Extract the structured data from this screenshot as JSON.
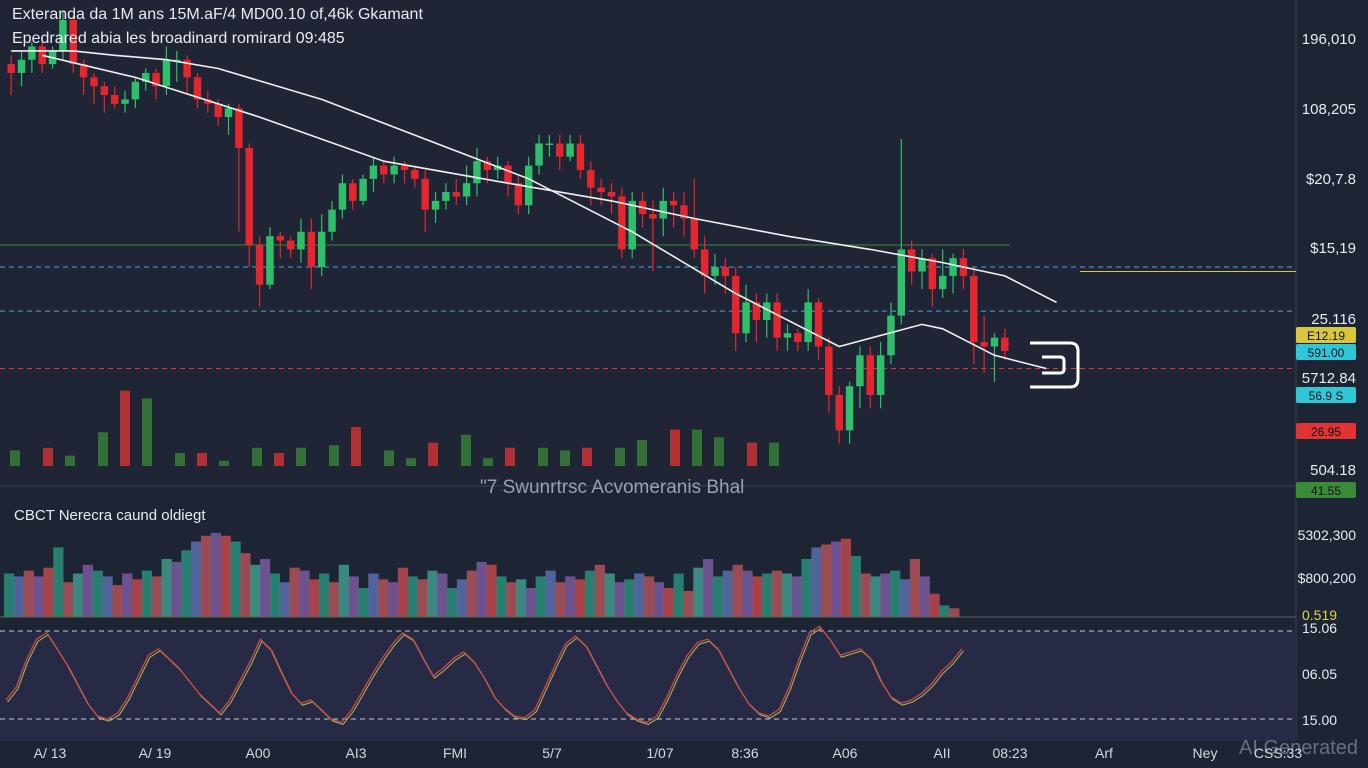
{
  "header": {
    "title": "Exteranda da 1M ans 15M.aF/4 MD00.10 of,46k Gkamant",
    "subtitle": "Epedrared abia les broadinard romirard 09:485"
  },
  "volume_panel": {
    "title": "CBCT Nerecra caund oldiegt"
  },
  "watermark": "AI Generated",
  "colors": {
    "background": "#1d2433",
    "panel_bg": "#262a44",
    "bullish": "#2fbf6a",
    "bearish": "#e5262f",
    "line": "#f0f0f0",
    "level_blue": "#4da3e8",
    "level_red": "#e23434",
    "level_green": "#3a8a3a",
    "level_yellow": "#d9c63a"
  },
  "chart_data": [
    {
      "type": "candlestick",
      "title": "Exteranda da 1M ans 15M.aF/4 MD00.10 of,46k Gkamant",
      "subtitle": "Epedrared abia les broadinard romirard 09:485",
      "y_tick_labels": [
        "196,010",
        "108,205",
        "$20,7.8",
        "$15,19",
        "25.116",
        "5712.84",
        "504.18"
      ],
      "x_tick_labels": [
        "A/ 13",
        "A/ 19",
        "A00",
        "AI3",
        "FMI",
        "5/7",
        "1/07",
        "8:36",
        "A06",
        "AII",
        "08:23",
        "Arf",
        "Ney",
        "CSS:33"
      ],
      "price_tags": [
        {
          "label": "E12.19",
          "color": "#d9c63a"
        },
        {
          "label": "591.00",
          "color": "#2fc6d8"
        },
        {
          "label": "56.9 S",
          "color": "#2fc6d8"
        },
        {
          "label": "26.95",
          "color": "#e23434"
        },
        {
          "label": "41.55",
          "color": "#3a8a3a"
        }
      ],
      "annotation": "\"7 Swunrtrsc Acvomeranis Bhal",
      "candles_ohlc": [
        [
          196,
          194,
          198,
          189
        ],
        [
          194,
          197,
          199,
          191
        ],
        [
          197,
          200,
          201,
          194
        ],
        [
          200,
          196,
          201,
          194
        ],
        [
          196,
          199,
          200,
          195
        ],
        [
          199,
          206,
          208,
          197
        ],
        [
          206,
          196,
          207,
          194
        ],
        [
          196,
          193,
          197,
          189
        ],
        [
          193,
          191,
          194,
          187
        ],
        [
          191,
          189,
          192,
          185
        ],
        [
          189,
          187,
          191,
          186
        ],
        [
          187,
          188,
          190,
          185
        ],
        [
          188,
          192,
          193,
          186
        ],
        [
          192,
          194,
          195,
          190
        ],
        [
          194,
          191,
          195,
          188
        ],
        [
          191,
          197,
          200,
          189
        ],
        [
          197,
          197,
          199,
          192
        ],
        [
          197,
          193,
          198,
          189
        ],
        [
          193,
          188,
          194,
          186
        ],
        [
          188,
          187,
          190,
          185
        ],
        [
          187,
          184,
          188,
          182
        ],
        [
          184,
          186,
          187,
          180
        ],
        [
          186,
          177,
          187,
          158
        ],
        [
          177,
          155,
          178,
          150
        ],
        [
          155,
          146,
          157,
          141
        ],
        [
          146,
          157,
          159,
          145
        ],
        [
          157,
          156,
          158,
          152
        ],
        [
          156,
          154,
          157,
          152
        ],
        [
          154,
          158,
          161,
          151
        ],
        [
          158,
          150,
          161,
          145
        ],
        [
          150,
          158,
          162,
          148
        ],
        [
          158,
          163,
          165,
          156
        ],
        [
          163,
          169,
          171,
          161
        ],
        [
          169,
          165,
          170,
          163
        ],
        [
          165,
          170,
          171,
          164
        ],
        [
          170,
          173,
          175,
          167
        ],
        [
          173,
          171,
          174,
          169
        ],
        [
          171,
          173,
          175,
          169
        ],
        [
          173,
          172,
          174,
          169
        ],
        [
          172,
          170,
          173,
          168
        ],
        [
          170,
          163,
          172,
          158
        ],
        [
          163,
          165,
          167,
          160
        ],
        [
          165,
          167,
          169,
          163
        ],
        [
          167,
          166,
          170,
          164
        ],
        [
          166,
          169,
          173,
          164
        ],
        [
          169,
          174,
          177,
          166
        ],
        [
          174,
          172,
          175,
          169
        ],
        [
          172,
          173,
          175,
          170
        ],
        [
          173,
          169,
          174,
          166
        ],
        [
          169,
          164,
          171,
          162
        ],
        [
          164,
          173,
          175,
          162
        ],
        [
          173,
          178,
          180,
          171
        ],
        [
          178,
          178,
          180,
          175
        ],
        [
          178,
          175,
          180,
          172
        ],
        [
          175,
          178,
          180,
          174
        ],
        [
          178,
          172,
          180,
          170
        ],
        [
          172,
          168,
          174,
          164
        ],
        [
          168,
          167,
          170,
          164
        ],
        [
          167,
          166,
          169,
          162
        ],
        [
          166,
          154,
          168,
          152
        ],
        [
          154,
          165,
          167,
          152
        ],
        [
          165,
          162,
          167,
          159
        ],
        [
          162,
          161,
          165,
          149
        ],
        [
          161,
          165,
          168,
          157
        ],
        [
          165,
          164,
          167,
          159
        ],
        [
          164,
          161,
          167,
          157
        ],
        [
          161,
          154,
          170,
          152
        ],
        [
          154,
          148,
          157,
          144
        ],
        [
          148,
          150,
          153,
          146
        ],
        [
          150,
          148,
          152,
          144
        ],
        [
          148,
          135,
          150,
          131
        ],
        [
          135,
          142,
          146,
          133
        ],
        [
          142,
          138,
          144,
          133
        ],
        [
          138,
          142,
          144,
          134
        ],
        [
          142,
          134,
          144,
          131
        ],
        [
          134,
          135,
          137,
          131
        ],
        [
          135,
          133,
          136,
          131
        ],
        [
          133,
          142,
          145,
          131
        ],
        [
          142,
          132,
          143,
          129
        ],
        [
          132,
          121,
          134,
          117
        ],
        [
          121,
          113,
          123,
          110
        ],
        [
          113,
          123,
          124,
          110
        ],
        [
          123,
          130,
          132,
          118
        ],
        [
          130,
          121,
          132,
          118
        ],
        [
          121,
          130,
          133,
          118
        ],
        [
          130,
          139,
          142,
          128
        ],
        [
          139,
          154,
          179,
          137
        ],
        [
          154,
          149,
          156,
          146
        ],
        [
          149,
          152,
          154,
          145
        ],
        [
          152,
          145,
          153,
          141
        ],
        [
          145,
          148,
          154,
          143
        ],
        [
          148,
          152,
          153,
          144
        ],
        [
          152,
          148,
          154,
          145
        ],
        [
          148,
          133,
          150,
          128
        ],
        [
          133,
          132,
          139,
          126
        ],
        [
          132,
          134,
          135,
          124
        ],
        [
          134,
          131,
          136,
          129
        ]
      ],
      "sma_short": [
        [
          0,
          199
        ],
        [
          6,
          199
        ],
        [
          10,
          198
        ],
        [
          15,
          197
        ],
        [
          20,
          195
        ],
        [
          30,
          188
        ],
        [
          40,
          179
        ],
        [
          50,
          170
        ],
        [
          60,
          158
        ],
        [
          70,
          144
        ],
        [
          80,
          132
        ],
        [
          88,
          137
        ],
        [
          90,
          136
        ],
        [
          95,
          130
        ],
        [
          100,
          127
        ]
      ],
      "sma_long": [
        [
          3,
          198
        ],
        [
          12,
          193
        ],
        [
          24,
          184
        ],
        [
          36,
          174
        ],
        [
          48,
          169
        ],
        [
          58,
          165
        ],
        [
          66,
          161
        ],
        [
          75,
          157
        ],
        [
          83,
          154
        ],
        [
          90,
          151
        ],
        [
          96,
          148
        ],
        [
          101,
          142
        ]
      ],
      "volume_ma_values": [
        [
          0,
          6
        ],
        [
          1,
          7
        ],
        [
          2,
          4
        ],
        [
          3,
          13
        ],
        [
          4,
          29
        ],
        [
          5,
          26
        ],
        [
          6,
          5
        ],
        [
          7,
          5
        ],
        [
          8,
          2
        ],
        [
          9,
          7
        ],
        [
          10,
          5
        ],
        [
          11,
          7
        ],
        [
          12,
          8
        ],
        [
          13,
          15
        ],
        [
          14,
          6
        ],
        [
          15,
          3
        ],
        [
          16,
          9
        ],
        [
          17,
          12
        ],
        [
          18,
          3
        ],
        [
          19,
          7
        ],
        [
          20,
          7
        ],
        [
          21,
          6
        ],
        [
          22,
          7
        ],
        [
          23,
          7
        ],
        [
          24,
          10
        ],
        [
          25,
          14
        ],
        [
          26,
          14
        ],
        [
          27,
          11
        ],
        [
          28,
          9
        ],
        [
          29,
          9
        ]
      ],
      "horizontal_levels": [
        {
          "value": 155,
          "color": "#3a8a3a",
          "style": "solid"
        },
        {
          "value": 150,
          "color": "#4da3e8",
          "style": "dashed"
        },
        {
          "value": 140,
          "color": "#4da3e8",
          "style": "dashed"
        },
        {
          "value": 127,
          "color": "#e23434",
          "style": "dashed"
        },
        {
          "value": 149,
          "color": "#d9c63a",
          "style": "solid"
        }
      ],
      "ylim": [
        104,
        206
      ]
    },
    {
      "type": "bar",
      "title": "CBCT Nerecra caund oldiegt",
      "y_tick_labels": [
        "5302,300",
        "$800,200",
        "0.519"
      ],
      "volumes": [
        15,
        14,
        16,
        14,
        17,
        24,
        12,
        15,
        18,
        16,
        14,
        11,
        15,
        13,
        16,
        14,
        20,
        19,
        23,
        26,
        28,
        29,
        28,
        26,
        22,
        18,
        20,
        15,
        12,
        17,
        16,
        13,
        15,
        12,
        18,
        14,
        10,
        15,
        13,
        12,
        17,
        14,
        13,
        16,
        15,
        10,
        13,
        16,
        19,
        18,
        14,
        12,
        13,
        10,
        14,
        16,
        12,
        14,
        13,
        16,
        18,
        15,
        12,
        13,
        15,
        14,
        12,
        10,
        15,
        9,
        17,
        20,
        14,
        16,
        18,
        16,
        14,
        15,
        16,
        15,
        14,
        20,
        24,
        25,
        26,
        27,
        21,
        15,
        14,
        15,
        16,
        13,
        20,
        14,
        8,
        4,
        3
      ]
    },
    {
      "type": "line",
      "title": "",
      "y_tick_labels": [
        "15.06",
        "06.05",
        "15.00"
      ],
      "oscillator": [
        20,
        28,
        45,
        58,
        62,
        52,
        42,
        30,
        18,
        10,
        8,
        12,
        22,
        35,
        48,
        52,
        46,
        40,
        32,
        24,
        18,
        12,
        20,
        32,
        44,
        58,
        52,
        38,
        25,
        18,
        20,
        14,
        8,
        6,
        14,
        25,
        36,
        46,
        55,
        62,
        58,
        46,
        35,
        40,
        46,
        50,
        44,
        34,
        22,
        15,
        10,
        9,
        14,
        28,
        42,
        55,
        60,
        54,
        42,
        30,
        20,
        12,
        8,
        6,
        10,
        22,
        36,
        48,
        56,
        58,
        52,
        40,
        28,
        18,
        12,
        10,
        14,
        28,
        46,
        62,
        66,
        58,
        48,
        50,
        52,
        46,
        32,
        22,
        18,
        20,
        24,
        30,
        38,
        44,
        52
      ],
      "levels": [
        15.06,
        15.0
      ],
      "ylim": [
        0,
        70
      ]
    }
  ]
}
